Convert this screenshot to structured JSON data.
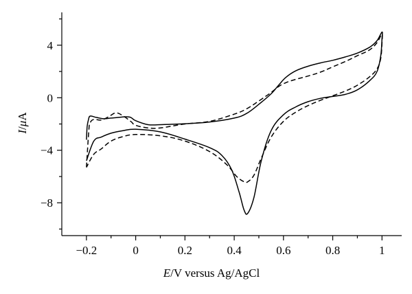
{
  "chart_data": {
    "type": "line",
    "xlabel_italic": "E",
    "xlabel_rest": "/V versus Ag/AgCl",
    "ylabel_italic": "I",
    "ylabel_sep": "/",
    "ylabel_mu": "μ",
    "ylabel_unit": "A",
    "xlim": [
      -0.3,
      1.08
    ],
    "ylim": [
      -10.5,
      6.5
    ],
    "x_ticks": [
      -0.2,
      0,
      0.2,
      0.4,
      0.6,
      0.8,
      1
    ],
    "x_tick_labels": [
      "−0.2",
      "0",
      "0.2",
      "0.4",
      "0.6",
      "0.8",
      "1"
    ],
    "y_ticks": [
      -8,
      -4,
      0,
      4
    ],
    "y_tick_labels": [
      "−8",
      "−4",
      "0",
      "4"
    ],
    "series": [
      {
        "style": "solid",
        "points": [
          [
            -0.2,
            -3.2
          ],
          [
            -0.197,
            -2.2
          ],
          [
            -0.192,
            -1.7
          ],
          [
            -0.185,
            -1.4
          ],
          [
            -0.16,
            -1.5
          ],
          [
            -0.13,
            -1.6
          ],
          [
            -0.1,
            -1.55
          ],
          [
            -0.07,
            -1.5
          ],
          [
            -0.04,
            -1.45
          ],
          [
            -0.02,
            -1.5
          ],
          [
            0.0,
            -1.75
          ],
          [
            0.05,
            -2.05
          ],
          [
            0.1,
            -2.05
          ],
          [
            0.2,
            -1.98
          ],
          [
            0.3,
            -1.85
          ],
          [
            0.4,
            -1.55
          ],
          [
            0.45,
            -1.2
          ],
          [
            0.5,
            -0.5
          ],
          [
            0.55,
            0.3
          ],
          [
            0.58,
            0.95
          ],
          [
            0.61,
            1.55
          ],
          [
            0.65,
            2.05
          ],
          [
            0.7,
            2.4
          ],
          [
            0.75,
            2.65
          ],
          [
            0.8,
            2.85
          ],
          [
            0.85,
            3.1
          ],
          [
            0.9,
            3.4
          ],
          [
            0.95,
            3.85
          ],
          [
            0.98,
            4.35
          ],
          [
            1.0,
            5.0
          ],
          [
            1.0,
            4.5
          ],
          [
            0.995,
            3.2
          ],
          [
            0.98,
            2.0
          ],
          [
            0.95,
            1.3
          ],
          [
            0.9,
            0.6
          ],
          [
            0.85,
            0.25
          ],
          [
            0.8,
            0.1
          ],
          [
            0.75,
            -0.05
          ],
          [
            0.7,
            -0.3
          ],
          [
            0.65,
            -0.7
          ],
          [
            0.6,
            -1.3
          ],
          [
            0.55,
            -2.5
          ],
          [
            0.51,
            -4.8
          ],
          [
            0.48,
            -7.6
          ],
          [
            0.455,
            -8.8
          ],
          [
            0.44,
            -8.55
          ],
          [
            0.42,
            -7.2
          ],
          [
            0.39,
            -5.5
          ],
          [
            0.35,
            -4.4
          ],
          [
            0.3,
            -3.8
          ],
          [
            0.2,
            -3.15
          ],
          [
            0.1,
            -2.6
          ],
          [
            0.0,
            -2.4
          ],
          [
            -0.05,
            -2.5
          ],
          [
            -0.1,
            -2.7
          ],
          [
            -0.14,
            -3.0
          ],
          [
            -0.17,
            -3.3
          ],
          [
            -0.2,
            -4.8
          ]
        ]
      },
      {
        "style": "dashed",
        "points": [
          [
            -0.2,
            -5.3
          ],
          [
            -0.19,
            -2.4
          ],
          [
            -0.185,
            -1.9
          ],
          [
            -0.17,
            -1.65
          ],
          [
            -0.14,
            -1.7
          ],
          [
            -0.11,
            -1.45
          ],
          [
            -0.08,
            -1.15
          ],
          [
            -0.05,
            -1.4
          ],
          [
            -0.02,
            -1.8
          ],
          [
            0.0,
            -2.1
          ],
          [
            0.05,
            -2.3
          ],
          [
            0.1,
            -2.3
          ],
          [
            0.2,
            -2.0
          ],
          [
            0.3,
            -1.8
          ],
          [
            0.4,
            -1.25
          ],
          [
            0.45,
            -0.85
          ],
          [
            0.5,
            -0.25
          ],
          [
            0.55,
            0.4
          ],
          [
            0.58,
            0.85
          ],
          [
            0.61,
            1.15
          ],
          [
            0.65,
            1.4
          ],
          [
            0.7,
            1.65
          ],
          [
            0.75,
            1.95
          ],
          [
            0.8,
            2.35
          ],
          [
            0.85,
            2.75
          ],
          [
            0.9,
            3.2
          ],
          [
            0.95,
            3.65
          ],
          [
            0.98,
            4.2
          ],
          [
            1.0,
            4.85
          ],
          [
            1.0,
            4.2
          ],
          [
            0.995,
            3.0
          ],
          [
            0.98,
            2.2
          ],
          [
            0.95,
            1.6
          ],
          [
            0.9,
            0.95
          ],
          [
            0.85,
            0.5
          ],
          [
            0.8,
            0.15
          ],
          [
            0.75,
            -0.2
          ],
          [
            0.7,
            -0.6
          ],
          [
            0.65,
            -1.1
          ],
          [
            0.6,
            -1.8
          ],
          [
            0.55,
            -3.0
          ],
          [
            0.51,
            -4.6
          ],
          [
            0.48,
            -5.9
          ],
          [
            0.455,
            -6.4
          ],
          [
            0.44,
            -6.4
          ],
          [
            0.41,
            -6.0
          ],
          [
            0.37,
            -5.1
          ],
          [
            0.3,
            -4.1
          ],
          [
            0.2,
            -3.3
          ],
          [
            0.1,
            -2.9
          ],
          [
            0.0,
            -2.8
          ],
          [
            -0.05,
            -2.95
          ],
          [
            -0.1,
            -3.3
          ],
          [
            -0.14,
            -3.9
          ],
          [
            -0.17,
            -4.3
          ],
          [
            -0.2,
            -5.3
          ]
        ]
      }
    ]
  }
}
